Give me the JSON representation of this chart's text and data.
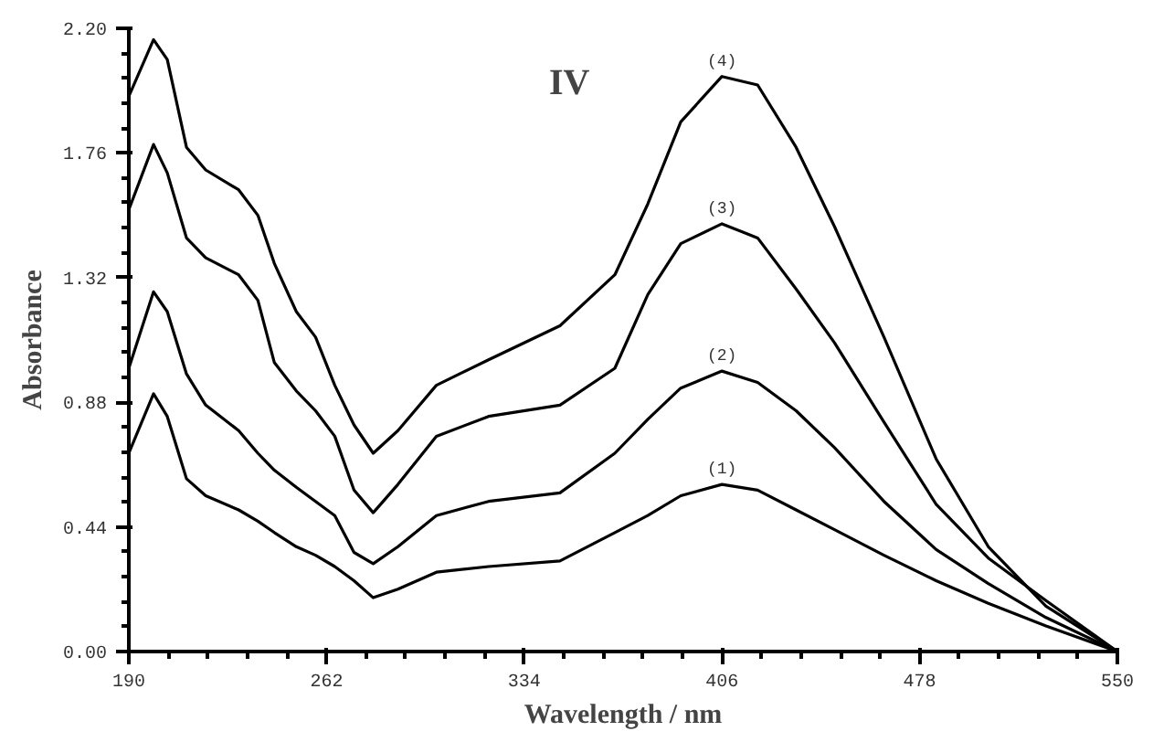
{
  "chart_data": {
    "type": "line",
    "xlabel": "Wavelength / nm",
    "ylabel": "Absorbance",
    "annotations": [
      "IV"
    ],
    "xlim": [
      190,
      550
    ],
    "ylim": [
      0,
      2.2
    ],
    "xticks": [
      190,
      262,
      334,
      406,
      478,
      550
    ],
    "yticks": [
      {
        "value": 0,
        "label": "0.00"
      },
      {
        "value": 0.44,
        "label": "0.44"
      },
      {
        "value": 0.88,
        "label": "0.88"
      },
      {
        "value": 1.32,
        "label": "1.32"
      },
      {
        "value": 1.76,
        "label": "1.76"
      },
      {
        "value": 2.2,
        "label": "2.20"
      }
    ],
    "grid": false,
    "marker": "none",
    "line_style": "solid",
    "x": [
      190,
      199,
      204,
      211,
      218,
      230,
      237,
      243,
      251,
      258,
      265,
      272,
      279,
      288,
      302,
      321,
      347,
      367,
      379,
      391,
      406,
      419,
      433,
      447,
      465,
      484,
      503,
      524,
      550
    ],
    "series": [
      {
        "name": "(1)",
        "color": "#000000",
        "values": [
          0.7,
          0.91,
          0.83,
          0.61,
          0.55,
          0.5,
          0.46,
          0.42,
          0.37,
          0.34,
          0.3,
          0.25,
          0.19,
          0.22,
          0.28,
          0.3,
          0.32,
          0.42,
          0.48,
          0.55,
          0.59,
          0.57,
          0.5,
          0.43,
          0.34,
          0.25,
          0.17,
          0.09,
          0.0
        ]
      },
      {
        "name": "(2)",
        "color": "#000000",
        "values": [
          1.0,
          1.27,
          1.2,
          0.98,
          0.87,
          0.78,
          0.7,
          0.64,
          0.58,
          0.53,
          0.48,
          0.35,
          0.31,
          0.37,
          0.48,
          0.53,
          0.56,
          0.7,
          0.82,
          0.93,
          0.99,
          0.95,
          0.85,
          0.72,
          0.53,
          0.36,
          0.24,
          0.12,
          0.0
        ]
      },
      {
        "name": "(3)",
        "color": "#000000",
        "values": [
          1.56,
          1.79,
          1.69,
          1.46,
          1.39,
          1.33,
          1.24,
          1.02,
          0.92,
          0.85,
          0.76,
          0.57,
          0.49,
          0.59,
          0.76,
          0.83,
          0.87,
          1.0,
          1.26,
          1.44,
          1.51,
          1.46,
          1.28,
          1.09,
          0.81,
          0.52,
          0.33,
          0.18,
          0.0
        ]
      },
      {
        "name": "(4)",
        "color": "#000000",
        "values": [
          1.96,
          2.16,
          2.09,
          1.78,
          1.7,
          1.63,
          1.54,
          1.37,
          1.2,
          1.11,
          0.94,
          0.8,
          0.7,
          0.78,
          0.94,
          1.03,
          1.15,
          1.33,
          1.58,
          1.87,
          2.03,
          2.0,
          1.78,
          1.5,
          1.11,
          0.68,
          0.37,
          0.16,
          0.0
        ]
      }
    ]
  }
}
